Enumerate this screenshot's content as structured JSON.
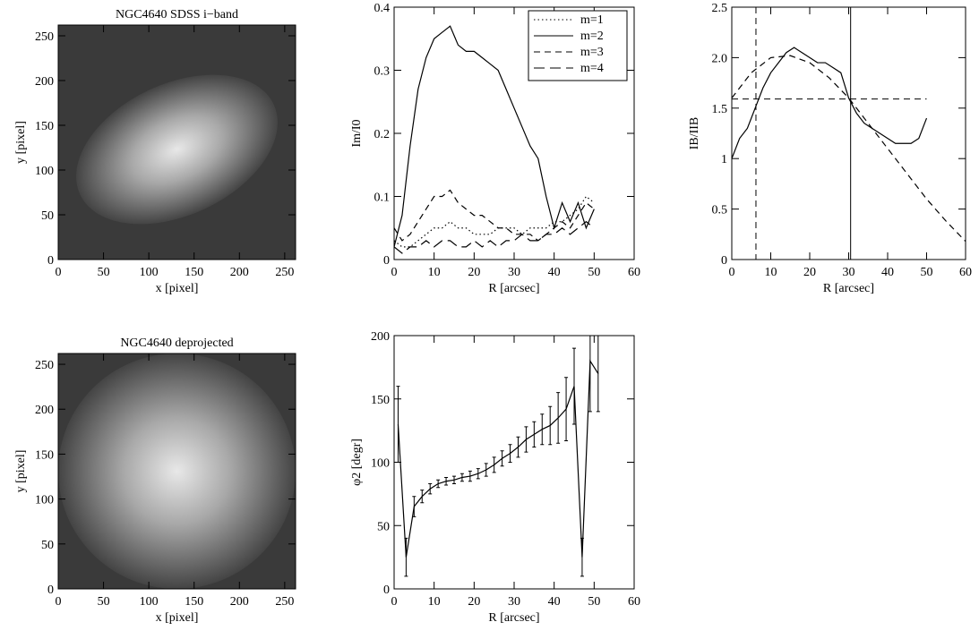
{
  "chart_data": [
    {
      "type": "image",
      "title": "NGC4640 SDSS i−band",
      "xlabel": "x [pixel]",
      "ylabel": "y [pixel]",
      "xlim": [
        0,
        262
      ],
      "ylim": [
        0,
        262
      ],
      "xticks": [
        0,
        50,
        100,
        150,
        200,
        250
      ],
      "yticks": [
        0,
        50,
        100,
        150,
        200,
        250
      ],
      "orientation": "inclined"
    },
    {
      "type": "line",
      "xlabel": "R [arcsec]",
      "ylabel": "Im/I0",
      "xlim": [
        0,
        60
      ],
      "ylim": [
        0,
        0.4
      ],
      "xticks": [
        0,
        10,
        20,
        30,
        40,
        50,
        60
      ],
      "yticks": [
        0,
        0.1,
        0.2,
        0.3,
        0.4
      ],
      "legend": "upper right",
      "x": [
        0,
        2,
        4,
        6,
        8,
        10,
        12,
        14,
        16,
        18,
        20,
        22,
        24,
        26,
        28,
        30,
        32,
        34,
        36,
        38,
        40,
        42,
        44,
        46,
        48,
        50
      ],
      "series": [
        {
          "name": "m=1",
          "color": "#000",
          "dash": "dotted",
          "values": [
            0.03,
            0.02,
            0.02,
            0.03,
            0.04,
            0.05,
            0.05,
            0.06,
            0.05,
            0.05,
            0.04,
            0.04,
            0.04,
            0.05,
            0.05,
            0.05,
            0.04,
            0.05,
            0.05,
            0.05,
            0.06,
            0.06,
            0.07,
            0.08,
            0.1,
            0.09
          ]
        },
        {
          "name": "m=2",
          "color": "#000",
          "dash": "solid",
          "values": [
            0.02,
            0.07,
            0.18,
            0.27,
            0.32,
            0.35,
            0.36,
            0.37,
            0.34,
            0.33,
            0.33,
            0.32,
            0.31,
            0.3,
            0.27,
            0.24,
            0.21,
            0.18,
            0.16,
            0.1,
            0.05,
            0.09,
            0.06,
            0.09,
            0.05,
            0.08
          ]
        },
        {
          "name": "m=3",
          "color": "#000",
          "dash": "dashed",
          "values": [
            0.05,
            0.03,
            0.04,
            0.06,
            0.08,
            0.1,
            0.1,
            0.11,
            0.09,
            0.08,
            0.07,
            0.07,
            0.06,
            0.05,
            0.05,
            0.04,
            0.04,
            0.04,
            0.03,
            0.04,
            0.05,
            0.06,
            0.05,
            0.07,
            0.09,
            0.08
          ]
        },
        {
          "name": "m=4",
          "color": "#000",
          "dash": "long-dashed",
          "values": [
            0.02,
            0.01,
            0.02,
            0.02,
            0.03,
            0.02,
            0.03,
            0.03,
            0.02,
            0.02,
            0.03,
            0.02,
            0.03,
            0.02,
            0.03,
            0.03,
            0.04,
            0.03,
            0.03,
            0.04,
            0.04,
            0.05,
            0.04,
            0.05,
            0.06,
            0.05
          ]
        }
      ]
    },
    {
      "type": "line",
      "xlabel": "R [arcsec]",
      "ylabel": "IB/IIB",
      "xlim": [
        0,
        60
      ],
      "ylim": [
        0,
        2.5
      ],
      "xticks": [
        0,
        10,
        20,
        30,
        40,
        50,
        60
      ],
      "yticks": [
        0,
        0.5,
        1.0,
        {
          "value": 1.5,
          "label": "1.5"
        },
        {
          "value": 2.0,
          "label": "2.0"
        },
        2.5
      ],
      "series": [
        {
          "dash": "solid",
          "color": "#000",
          "x": [
            0,
            2,
            4,
            6,
            8,
            10,
            12,
            14,
            16,
            18,
            20,
            22,
            24,
            26,
            28,
            30,
            32,
            34,
            36,
            38,
            40,
            42,
            44,
            46,
            48,
            50
          ],
          "values": [
            1.0,
            1.2,
            1.3,
            1.5,
            1.7,
            1.85,
            1.95,
            2.05,
            2.1,
            2.05,
            2.0,
            1.95,
            1.95,
            1.9,
            1.85,
            1.6,
            1.45,
            1.35,
            1.3,
            1.25,
            1.2,
            1.15,
            1.15,
            1.15,
            1.2,
            1.4
          ]
        },
        {
          "dash": "dashed",
          "color": "#000",
          "x": [
            0,
            5,
            10,
            15,
            20,
            25,
            30,
            35,
            40,
            45,
            50,
            55,
            60
          ],
          "values": [
            1.6,
            1.85,
            2.0,
            2.02,
            1.95,
            1.8,
            1.6,
            1.35,
            1.1,
            0.85,
            0.6,
            0.38,
            0.18
          ]
        }
      ],
      "reference_lines": [
        {
          "orientation": "horizontal",
          "value": 1.59,
          "extent": [
            0,
            50
          ],
          "dash": "dashed"
        },
        {
          "orientation": "vertical",
          "value": 6.2,
          "dash": "dashed"
        },
        {
          "orientation": "vertical",
          "value": 30.5,
          "dash": "solid"
        }
      ]
    },
    {
      "type": "image",
      "title": "NGC4640 deprojected",
      "xlabel": "x [pixel]",
      "ylabel": "y [pixel]",
      "xlim": [
        0,
        262
      ],
      "ylim": [
        0,
        262
      ],
      "xticks": [
        0,
        50,
        100,
        150,
        200,
        250
      ],
      "yticks": [
        0,
        50,
        100,
        150,
        200,
        250
      ],
      "orientation": "face-on"
    },
    {
      "type": "errorbar",
      "xlabel": "R [arcsec]",
      "ylabel": "φ2 [degr]",
      "xlim": [
        0,
        60
      ],
      "ylim": [
        0,
        200
      ],
      "xticks": [
        0,
        10,
        20,
        30,
        40,
        50,
        60
      ],
      "yticks": [
        0,
        50,
        100,
        150,
        200
      ],
      "x": [
        1,
        3,
        5,
        7,
        9,
        11,
        13,
        15,
        17,
        19,
        21,
        23,
        25,
        27,
        29,
        31,
        33,
        35,
        37,
        39,
        41,
        43,
        45,
        47,
        49,
        51
      ],
      "values": [
        130,
        25,
        65,
        73,
        79,
        83,
        85,
        86,
        88,
        89,
        91,
        94,
        98,
        103,
        107,
        112,
        118,
        122,
        126,
        129,
        135,
        142,
        160,
        25,
        180,
        170
      ],
      "errors": [
        30,
        15,
        8,
        5,
        4,
        3,
        3,
        3,
        3,
        4,
        4,
        5,
        6,
        6,
        7,
        8,
        10,
        10,
        12,
        15,
        20,
        25,
        30,
        15,
        40,
        30
      ]
    }
  ]
}
